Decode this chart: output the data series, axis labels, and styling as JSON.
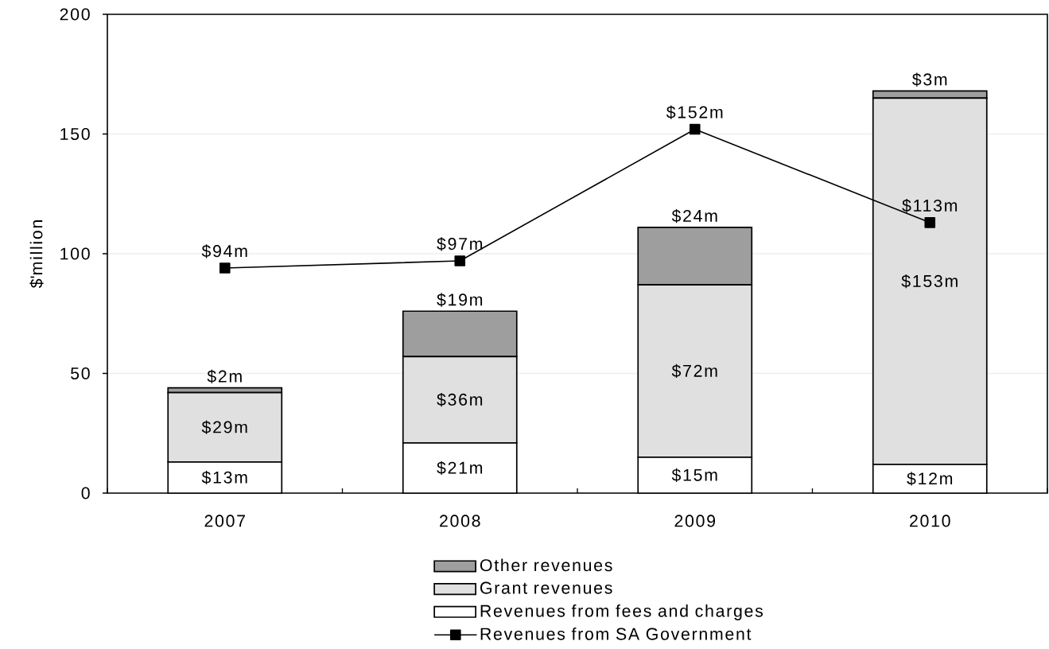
{
  "chart_data": {
    "type": "bar",
    "stacked": true,
    "categories": [
      "2007",
      "2008",
      "2009",
      "2010"
    ],
    "ylabel": "$'million",
    "ylim": [
      0,
      200
    ],
    "yticks": [
      0,
      50,
      100,
      150,
      200
    ],
    "grid": "y",
    "legend": "bottom",
    "series": [
      {
        "name": "Revenues from fees and charges",
        "color": "#ffffff",
        "values": [
          13,
          21,
          15,
          12
        ],
        "value_labels": [
          "$13m",
          "$21m",
          "$15m",
          "$12m"
        ]
      },
      {
        "name": "Grant revenues",
        "color": "#e0e0e0",
        "values": [
          29,
          36,
          72,
          153
        ],
        "value_labels": [
          "$29m",
          "$36m",
          "$72m",
          "$153m"
        ]
      },
      {
        "name": "Other revenues",
        "color": "#9e9e9e",
        "values": [
          2,
          19,
          24,
          3
        ],
        "value_labels": [
          "$2m",
          "$19m",
          "$24m",
          "$3m"
        ]
      },
      {
        "name": "Revenues from SA Government",
        "type": "line",
        "color": "#000000",
        "marker": "square",
        "line_style": "solid",
        "values": [
          94,
          97,
          152,
          113
        ],
        "value_labels": [
          "$94m",
          "$97m",
          "$152m",
          "$113m"
        ]
      }
    ]
  }
}
